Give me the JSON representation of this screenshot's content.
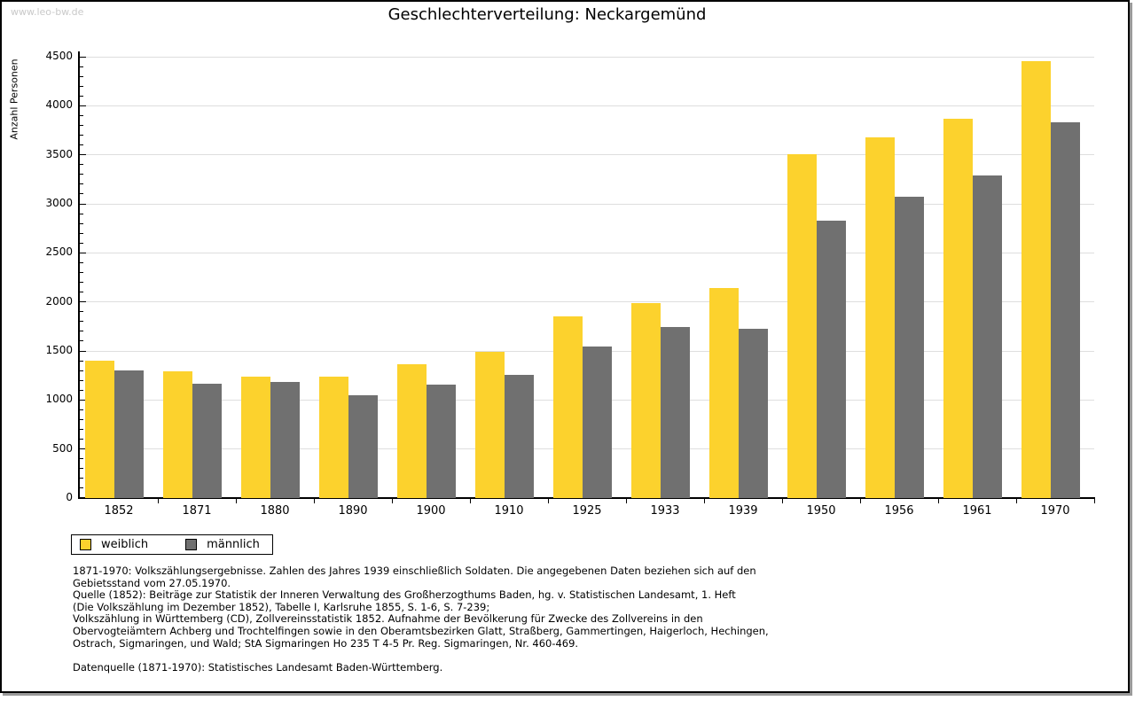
{
  "page": {
    "watermark": "www.leo-bw.de",
    "title": "Geschlechterverteilung: Neckargemünd"
  },
  "chart_data": {
    "type": "bar",
    "title": "Geschlechterverteilung: Neckargemünd",
    "xlabel": "",
    "ylabel": "Anzahl Personen",
    "categories": [
      "1852",
      "1871",
      "1880",
      "1890",
      "1900",
      "1910",
      "1925",
      "1933",
      "1939",
      "1950",
      "1956",
      "1961",
      "1970"
    ],
    "series": [
      {
        "name": "weiblich",
        "color": "#FCD22D",
        "values": [
          1400,
          1295,
          1240,
          1235,
          1365,
          1490,
          1855,
          1990,
          2145,
          3510,
          3680,
          3870,
          4455
        ]
      },
      {
        "name": "männlich",
        "color": "#707070",
        "values": [
          1305,
          1170,
          1185,
          1050,
          1160,
          1255,
          1545,
          1740,
          1730,
          2825,
          3070,
          3285,
          3835
        ]
      }
    ],
    "ylim": [
      0,
      4500
    ],
    "ytick_step": 500,
    "yminor_step": 100,
    "grid": true,
    "legend_position": "bottom-left"
  },
  "legend": {
    "items": [
      {
        "label": "weiblich",
        "color": "#FCD22D"
      },
      {
        "label": "männlich",
        "color": "#707070"
      }
    ]
  },
  "footnotes": {
    "lines": [
      "1871-1970: Volkszählungsergebnisse. Zahlen des Jahres 1939 einschließlich Soldaten. Die angegebenen Daten beziehen sich auf den",
      "Gebietsstand vom 27.05.1970.",
      "Quelle (1852): Beiträge zur Statistik der Inneren Verwaltung des Großherzogthums Baden, hg. v. Statistischen Landesamt, 1. Heft",
      "(Die Volkszählung im Dezember 1852), Tabelle I, Karlsruhe 1855, S. 1-6, S. 7-239;",
      "Volkszählung in Württemberg (CD), Zollvereinsstatistik 1852. Aufnahme der Bevölkerung für Zwecke des Zollvereins in den",
      "Obervogteiämtern Achberg und Trochtelfingen sowie in den Oberamtsbezirken Glatt, Straßberg, Gammertingen, Haigerloch, Hechingen,",
      "Ostrach, Sigmaringen, und Wald; StA Sigmaringen Ho 235 T 4-5 Pr. Reg. Sigmaringen, Nr. 460-469.",
      "",
      "Datenquelle (1871-1970): Statistisches Landesamt Baden-Württemberg."
    ]
  },
  "colors": {
    "background": "#ffffff",
    "axis": "#000000",
    "gridline": "#dedede",
    "watermark": "#c9c9c9",
    "frame_border": "#000000",
    "frame_shadow": "#9a9a9a"
  }
}
